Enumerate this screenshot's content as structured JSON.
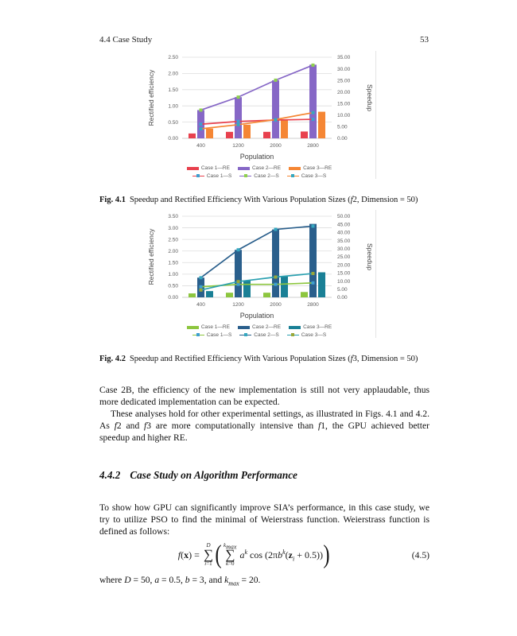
{
  "header": {
    "left": "4.4  Case Study",
    "page_number": "53"
  },
  "figures": [
    {
      "caption_label": "Fig. 4.1",
      "caption_rich": [
        {
          "t": "Speedup and Rectified Efficiency With Various Population Sizes ("
        },
        {
          "t": "f",
          "i": 1
        },
        {
          "t": "2, Dimension = 50)"
        }
      ]
    },
    {
      "caption_label": "Fig. 4.2",
      "caption_rich": [
        {
          "t": "Speedup and Rectified Efficiency With Various Population Sizes ("
        },
        {
          "t": "f",
          "i": 1
        },
        {
          "t": "3, Dimension = 50)"
        }
      ]
    }
  ],
  "chart_data": [
    {
      "type": "bar-line-combo",
      "categories": [
        "400",
        "1200",
        "2000",
        "2800"
      ],
      "xlabel": "Population",
      "left_axis": {
        "title": "Rectified efficiency",
        "min": 0,
        "max": 2.5,
        "step": 0.5
      },
      "right_axis": {
        "title": "Speedup",
        "min": 0,
        "max": 35,
        "step": 5
      },
      "grid": true,
      "legend_position": "bottom",
      "bar_series": [
        {
          "name": "Case 1—RE",
          "color": "#E8414E",
          "values": [
            0.15,
            0.2,
            0.2,
            0.21
          ]
        },
        {
          "name": "Case 2—RE",
          "color": "#8667C6",
          "values": [
            0.87,
            1.27,
            1.79,
            2.27
          ]
        },
        {
          "name": "Case 3—RE",
          "color": "#F58634",
          "values": [
            0.3,
            0.42,
            0.57,
            0.82
          ]
        }
      ],
      "line_series": [
        {
          "name": "Case 1—S",
          "color": "#E8414E",
          "marker": "#3E9FD0",
          "values": [
            6.1,
            7.3,
            7.9,
            8.2
          ]
        },
        {
          "name": "Case 2—S",
          "color": "#8667C6",
          "marker": "#8FD14F",
          "values": [
            12.2,
            17.8,
            25.1,
            31.6
          ]
        },
        {
          "name": "Case 3—S",
          "color": "#F58634",
          "marker": "#35A8C0",
          "values": [
            4.1,
            5.9,
            8.1,
            11.1
          ]
        }
      ]
    },
    {
      "type": "bar-line-combo",
      "categories": [
        "400",
        "1200",
        "2000",
        "2800"
      ],
      "xlabel": "Population",
      "left_axis": {
        "title": "Rectified efficiency",
        "min": 0,
        "max": 3.5,
        "step": 0.5
      },
      "right_axis": {
        "title": "Speedup",
        "min": 0,
        "max": 50,
        "step": 5
      },
      "grid": true,
      "legend_position": "bottom",
      "bar_series": [
        {
          "name": "Case 1—RE",
          "color": "#8DC63F",
          "values": [
            0.17,
            0.2,
            0.2,
            0.23
          ]
        },
        {
          "name": "Case 2—RE",
          "color": "#2A5F8C",
          "values": [
            0.85,
            2.05,
            2.93,
            3.17
          ]
        },
        {
          "name": "Case 3—RE",
          "color": "#1A8096",
          "values": [
            0.27,
            0.72,
            0.9,
            1.08
          ]
        }
      ],
      "line_series": [
        {
          "name": "Case 1—S",
          "color": "#8DC63F",
          "marker": "#3E9FD0",
          "values": [
            6.5,
            8.0,
            8.0,
            8.9
          ]
        },
        {
          "name": "Case 2—S",
          "color": "#2A5F8C",
          "marker": "#35A8C0",
          "values": [
            12.1,
            29.3,
            41.9,
            43.9
          ]
        },
        {
          "name": "Case 3—S",
          "color": "#2BA0B0",
          "marker": "#9AA83A",
          "values": [
            4.5,
            9.7,
            12.5,
            14.7
          ]
        }
      ]
    }
  ],
  "body": {
    "para1": "Case 2B, the efficiency of the new implementation is still not very applaudable, thus more dedicated implementation can be expected.",
    "para2_rich": [
      {
        "t": "These analyses hold for other experimental settings, as illustrated in Figs. 4.1 and 4.2. As "
      },
      {
        "t": "f",
        "i": 1
      },
      {
        "t": "2 and "
      },
      {
        "t": "f",
        "i": 1
      },
      {
        "t": "3 are more computationally intensive than "
      },
      {
        "t": "f",
        "i": 1
      },
      {
        "t": "1, the GPU achieved better speedup and higher RE."
      }
    ],
    "para3": "To show how GPU can significantly improve SIA’s performance, in this case study, we try to utilize PSO to find the minimal of Weierstrass function. Weierstrass function is defined as follows:",
    "where_rich": [
      {
        "t": "where "
      },
      {
        "t": "D",
        "i": 1
      },
      {
        "t": " = 50, "
      },
      {
        "t": "a",
        "i": 1
      },
      {
        "t": " = 0.5, "
      },
      {
        "t": "b",
        "i": 1
      },
      {
        "t": " = 3, and "
      },
      {
        "t": "k",
        "i": 1
      },
      {
        "t": "max",
        "i": 1,
        "sub": 1
      },
      {
        "t": " = 20."
      }
    ]
  },
  "section": {
    "number": "4.4.2",
    "title": "Case Study on Algorithm Performance"
  },
  "equation": {
    "lhs": [
      {
        "t": "f",
        "i": 1
      },
      {
        "t": "("
      },
      {
        "t": "x",
        "b": 1
      },
      {
        "t": ") ="
      }
    ],
    "sigma_glyph": "∑",
    "sum1_top": [
      {
        "t": "D",
        "i": 1
      }
    ],
    "sum1_bot": [
      {
        "t": "i",
        "i": 1
      },
      {
        "t": "=1"
      }
    ],
    "sum2_top": [
      {
        "t": "k",
        "i": 1
      },
      {
        "t": "max",
        "i": 1,
        "sub": 1
      }
    ],
    "sum2_bot": [
      {
        "t": "k",
        "i": 1
      },
      {
        "t": "=0"
      }
    ],
    "term": [
      {
        "t": "a",
        "i": 1
      },
      {
        "t": "k",
        "i": 1,
        "sup": 1
      },
      {
        "t": " cos (2π"
      },
      {
        "t": "b",
        "i": 1
      },
      {
        "t": "k",
        "i": 1,
        "sup": 1
      },
      {
        "t": "("
      },
      {
        "t": "z",
        "b": 1
      },
      {
        "t": "i",
        "i": 1,
        "sub": 1
      },
      {
        "t": " + 0.5))"
      }
    ],
    "paren_open": "(",
    "paren_close": ")",
    "number": "(4.5)"
  }
}
